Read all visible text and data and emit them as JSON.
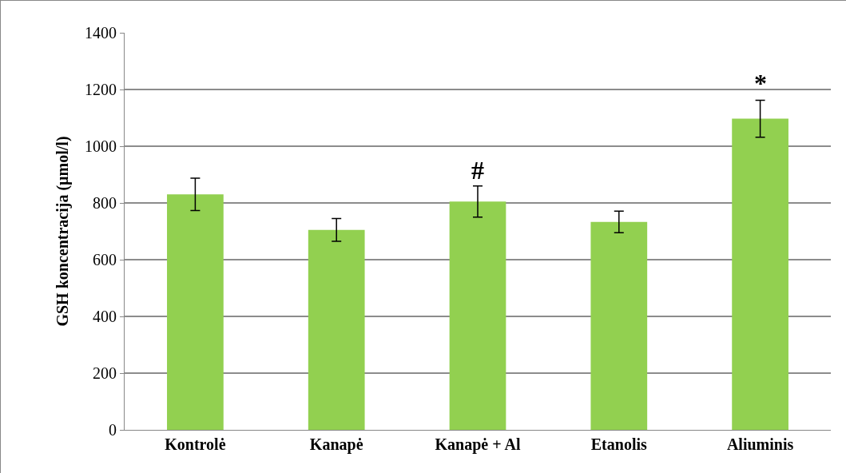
{
  "chart_data": {
    "type": "bar",
    "ylabel": "GSH koncentracija (µmol/l)",
    "categories": [
      "Kontrolė",
      "Kanapė",
      "Kanapė + Al",
      "Etanolis",
      "Aliuminis"
    ],
    "values": [
      830,
      705,
      805,
      733,
      1097
    ],
    "errors": [
      57,
      40,
      55,
      38,
      65
    ],
    "color": "#92d050",
    "ylim": [
      0,
      1400
    ],
    "yticks": [
      0,
      200,
      400,
      600,
      800,
      1000,
      1200,
      1400
    ],
    "grid": "y",
    "legend": false,
    "annotations": [
      {
        "text": "#",
        "x": "Kanapė + Al",
        "y": 860
      },
      {
        "text": "*",
        "x": "Aliuminis",
        "y": 1165
      }
    ]
  }
}
